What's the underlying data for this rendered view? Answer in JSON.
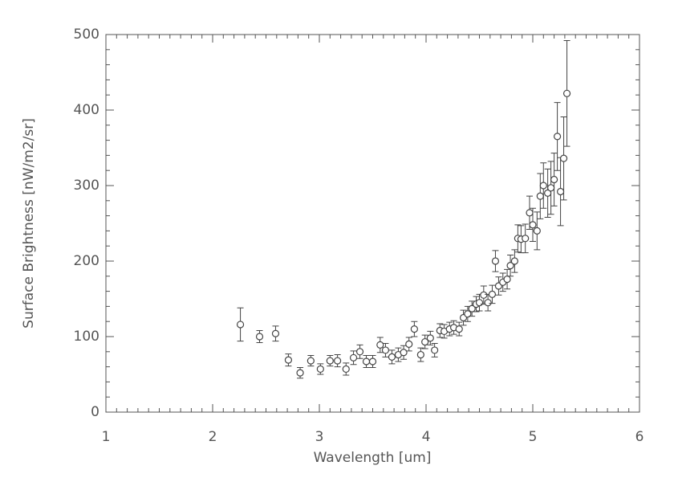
{
  "chart_data": {
    "type": "scatter",
    "xlabel": "Wavelength [um]",
    "ylabel": "Surface Brightness [nW/m2/sr]",
    "xlim": [
      1,
      6
    ],
    "xticks": [
      1,
      2,
      3,
      4,
      5,
      6
    ],
    "ylim": [
      0,
      500
    ],
    "yticks": [
      0,
      100,
      200,
      300,
      400,
      500
    ],
    "color": "#444444",
    "x": [
      2.26,
      2.44,
      2.59,
      2.71,
      2.82,
      2.92,
      3.01,
      3.1,
      3.17,
      3.25,
      3.32,
      3.38,
      3.44,
      3.5,
      3.57,
      3.62,
      3.68,
      3.74,
      3.79,
      3.84,
      3.89,
      3.95,
      3.99,
      4.04,
      4.08,
      4.13,
      4.17,
      4.22,
      4.26,
      4.31,
      4.35,
      4.39,
      4.43,
      4.47,
      4.5,
      4.54,
      4.58,
      4.62,
      4.65,
      4.68,
      4.72,
      4.76,
      4.79,
      4.83,
      4.86,
      4.89,
      4.93,
      4.97,
      5.0,
      5.04,
      5.07,
      5.1,
      5.14,
      5.17,
      5.2,
      5.23,
      5.26,
      5.29,
      5.32
    ],
    "values": [
      116,
      100,
      104,
      69,
      52,
      68,
      57,
      68,
      68,
      57,
      72,
      80,
      67,
      67,
      89,
      82,
      73,
      76,
      79,
      90,
      110,
      76,
      93,
      98,
      82,
      108,
      107,
      110,
      112,
      110,
      125,
      130,
      137,
      143,
      145,
      155,
      145,
      156,
      200,
      167,
      172,
      176,
      194,
      200,
      230,
      229,
      230,
      264,
      248,
      240,
      286,
      300,
      290,
      297,
      308,
      365,
      292,
      336,
      422
    ],
    "errors": [
      22,
      8,
      10,
      8,
      7,
      7,
      7,
      7,
      8,
      8,
      9,
      9,
      8,
      8,
      10,
      9,
      9,
      9,
      9,
      9,
      10,
      9,
      9,
      9,
      9,
      9,
      9,
      9,
      9,
      9,
      10,
      10,
      10,
      10,
      11,
      12,
      11,
      12,
      14,
      12,
      12,
      13,
      14,
      15,
      18,
      18,
      19,
      22,
      22,
      25,
      30,
      30,
      32,
      35,
      35,
      45,
      45,
      55,
      70
    ]
  }
}
